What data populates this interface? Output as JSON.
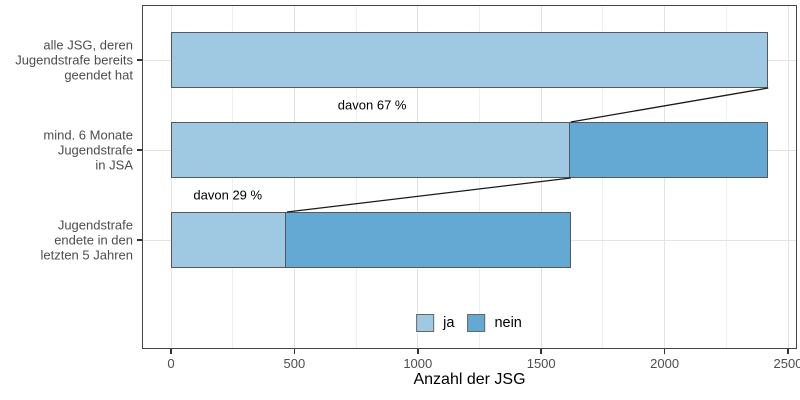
{
  "chart_data": {
    "type": "bar",
    "orientation": "horizontal",
    "stacked": true,
    "title": "",
    "xlabel": "Anzahl der JSG",
    "ylabel": "",
    "xlim": [
      0,
      2500
    ],
    "x_major_ticks": [
      0,
      500,
      1000,
      1500,
      2000,
      2500
    ],
    "x_minor_ticks": [
      250,
      750,
      1250,
      1750,
      2250
    ],
    "grid": {
      "vertical": "major+minor",
      "horizontal": "major-at-category-centers"
    },
    "categories": [
      "alle JSG, deren\nJugendstrafe bereits\ngeendet hat",
      "mind. 6 Monate\nJugendstrafe\nin JSA",
      "Jugendstrafe\nendete in den\nletzten 5 Jahren"
    ],
    "series": [
      {
        "name": "ja",
        "color": "#9FC9E2",
        "values": [
          2420,
          1620,
          470
        ]
      },
      {
        "name": "nein",
        "color": "#64A9D3",
        "values": [
          0,
          800,
          1150
        ]
      }
    ],
    "annotations": [
      {
        "text": "davon 67 %",
        "x_value": 815,
        "gap_after_row": 0
      },
      {
        "text": "davon 29 %",
        "x_value": 230,
        "gap_after_row": 1
      }
    ],
    "connectors": [
      {
        "series": "ja",
        "from_row": 0,
        "to_row": 1
      },
      {
        "series": "ja",
        "from_row": 1,
        "to_row": 2
      }
    ],
    "legend": {
      "position": "inside-bottom-center",
      "items": [
        {
          "label": "ja",
          "color": "#9FC9E2"
        },
        {
          "label": "nein",
          "color": "#64A9D3"
        }
      ]
    }
  },
  "colors": {
    "background": "#FFFFFF",
    "panel_border": "#454545",
    "grid_major": "#E3E3E3",
    "grid_minor": "#EFEFEF",
    "bar_stroke": "#54595E",
    "connector_line": "#1A1A1A",
    "axis_tick": "#333333",
    "tick_label": "#4D4D4D",
    "axis_title": "#000000",
    "annotation_text": "#000000",
    "legend_text": "#000000",
    "legend_key_border": "#666666"
  }
}
